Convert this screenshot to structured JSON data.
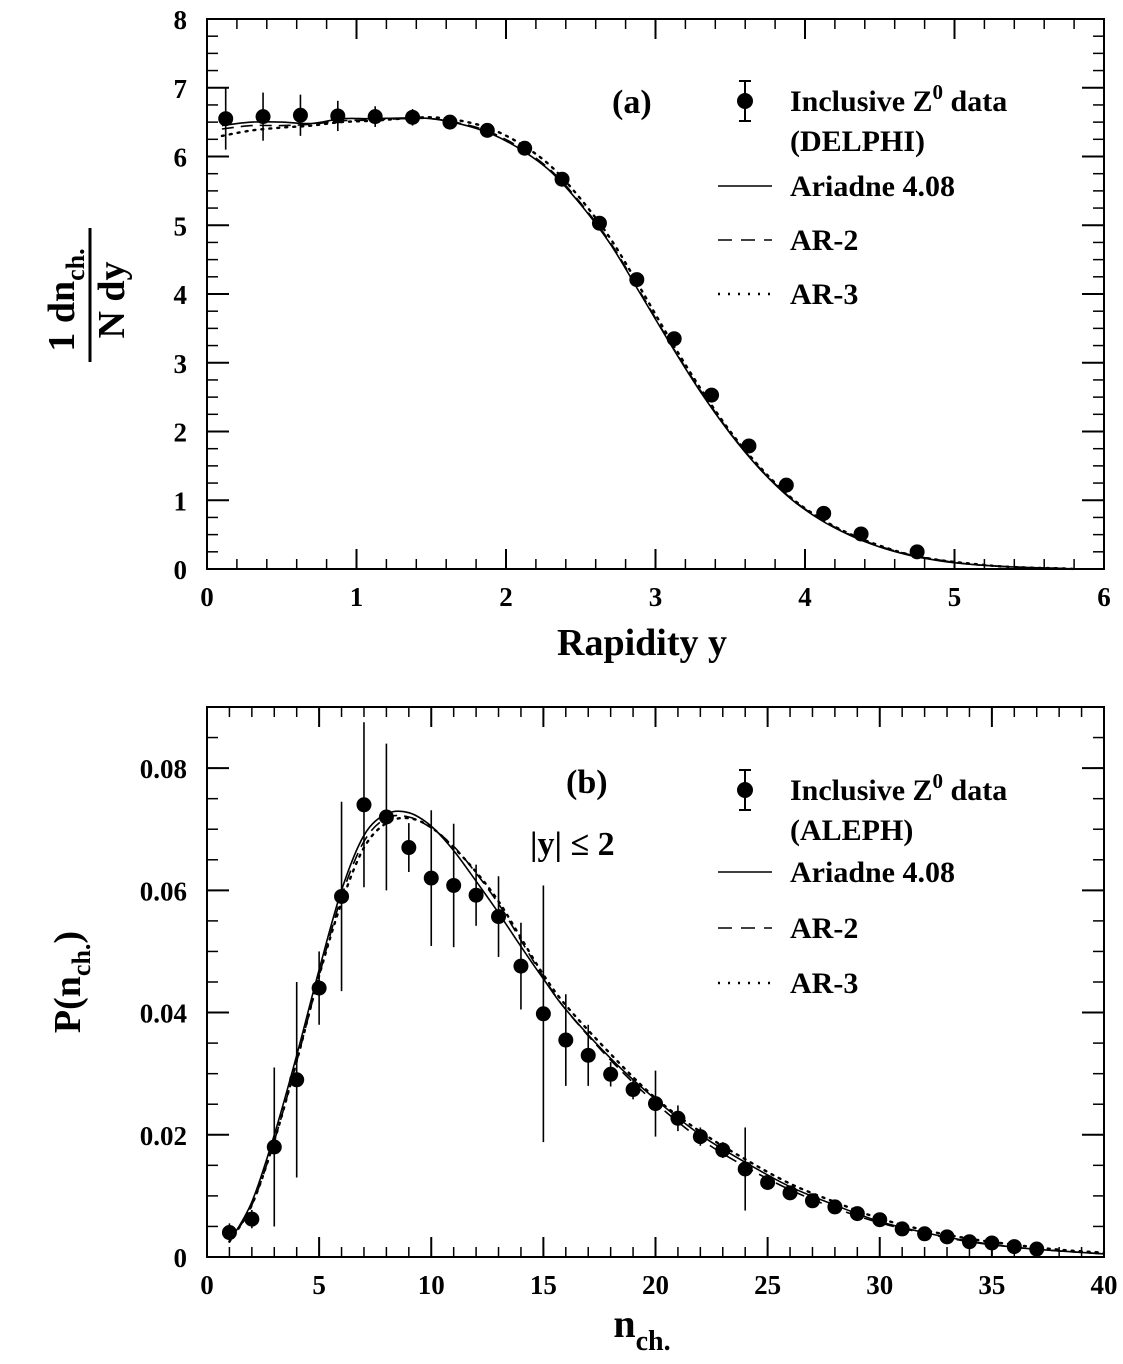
{
  "chart_data": [
    {
      "type": "scatter",
      "panel_label": "(a)",
      "xlabel": "Rapidity y",
      "ylabel": "1/N dn_ch./dy",
      "xlim": [
        0,
        6
      ],
      "ylim": [
        0,
        8
      ],
      "xticks": [
        "0",
        "1",
        "2",
        "3",
        "4",
        "5",
        "6"
      ],
      "yticks": [
        "0",
        "1",
        "2",
        "3",
        "4",
        "5",
        "6",
        "7",
        "8"
      ],
      "grid": false,
      "legend_position": "top-right",
      "legend": [
        {
          "marker": "point-errorbar",
          "label": "Inclusive Z^0 data",
          "label_line2": "(DELPHI)"
        },
        {
          "style": "solid",
          "label": "Ariadne 4.08"
        },
        {
          "style": "dashed",
          "label": "AR-2"
        },
        {
          "style": "dotted",
          "label": "AR-3"
        }
      ],
      "data": {
        "name": "Inclusive Z0 data (DELPHI)",
        "x": [
          0.125,
          0.375,
          0.625,
          0.875,
          1.125,
          1.375,
          1.625,
          1.875,
          2.125,
          2.375,
          2.625,
          2.875,
          3.125,
          3.375,
          3.625,
          3.875,
          4.125,
          4.375,
          4.75
        ],
        "y": [
          6.55,
          6.58,
          6.6,
          6.59,
          6.58,
          6.57,
          6.5,
          6.38,
          6.12,
          5.67,
          5.03,
          4.21,
          3.35,
          2.53,
          1.79,
          1.22,
          0.81,
          0.51,
          0.25
        ],
        "err": [
          0.45,
          0.35,
          0.3,
          0.22,
          0.15,
          0.12,
          0.06,
          0.05,
          0.05,
          0.05,
          0.05,
          0.05,
          0.05,
          0.05,
          0.05,
          0.05,
          0.04,
          0.04,
          0.04
        ]
      },
      "series": [
        {
          "name": "Ariadne 4.08",
          "style": "solid",
          "x": [
            0.1,
            0.3,
            0.5,
            0.7,
            0.9,
            1.1,
            1.3,
            1.5,
            1.7,
            1.9,
            2.1,
            2.3,
            2.5,
            2.7,
            2.9,
            3.1,
            3.3,
            3.5,
            3.7,
            3.9,
            4.1,
            4.3,
            4.5,
            4.7,
            4.9,
            5.1,
            5.3,
            5.5,
            5.7,
            5.8
          ],
          "y": [
            6.45,
            6.5,
            6.5,
            6.48,
            6.55,
            6.55,
            6.56,
            6.55,
            6.47,
            6.33,
            6.1,
            5.78,
            5.3,
            4.72,
            4.0,
            3.27,
            2.58,
            1.97,
            1.45,
            1.03,
            0.72,
            0.49,
            0.32,
            0.2,
            0.12,
            0.07,
            0.04,
            0.02,
            0.01,
            0.0
          ]
        },
        {
          "name": "AR-2",
          "style": "dashed",
          "x": [
            0.1,
            0.3,
            0.5,
            0.7,
            0.9,
            1.1,
            1.3,
            1.5,
            1.7,
            1.9,
            2.1,
            2.3,
            2.5,
            2.7,
            2.9,
            3.1,
            3.3,
            3.5,
            3.7,
            3.9,
            4.1,
            4.3,
            4.5,
            4.7,
            4.9,
            5.1,
            5.3,
            5.5,
            5.7,
            5.8
          ],
          "y": [
            6.4,
            6.45,
            6.45,
            6.47,
            6.52,
            6.53,
            6.55,
            6.55,
            6.48,
            6.35,
            6.12,
            5.8,
            5.32,
            4.74,
            4.02,
            3.28,
            2.6,
            1.98,
            1.46,
            1.04,
            0.73,
            0.5,
            0.33,
            0.21,
            0.13,
            0.07,
            0.04,
            0.02,
            0.01,
            0.0
          ]
        },
        {
          "name": "AR-3",
          "style": "dotted",
          "x": [
            0.1,
            0.3,
            0.5,
            0.7,
            0.9,
            1.1,
            1.3,
            1.5,
            1.7,
            1.9,
            2.1,
            2.3,
            2.5,
            2.7,
            2.9,
            3.1,
            3.3,
            3.5,
            3.7,
            3.9,
            4.1,
            4.3,
            4.5,
            4.7,
            4.9,
            5.1,
            5.3,
            5.5,
            5.7,
            5.8
          ],
          "y": [
            6.3,
            6.38,
            6.42,
            6.45,
            6.5,
            6.52,
            6.55,
            6.57,
            6.52,
            6.4,
            6.18,
            5.86,
            5.38,
            4.8,
            4.08,
            3.33,
            2.63,
            2.0,
            1.48,
            1.05,
            0.74,
            0.51,
            0.34,
            0.21,
            0.13,
            0.08,
            0.04,
            0.02,
            0.01,
            0.0
          ]
        }
      ]
    },
    {
      "type": "scatter",
      "panel_label": "(b)",
      "annotation": "|y| ≤ 2",
      "xlabel": "n_ch.",
      "ylabel": "P(n_ch.)",
      "xlim": [
        0,
        40
      ],
      "ylim": [
        0,
        0.09
      ],
      "xticks": [
        "0",
        "5",
        "10",
        "15",
        "20",
        "25",
        "30",
        "35",
        "40"
      ],
      "yticks": [
        "0",
        "0.02",
        "0.04",
        "0.06",
        "0.08"
      ],
      "grid": false,
      "legend_position": "top-right",
      "legend": [
        {
          "marker": "point-errorbar",
          "label": "Inclusive Z^0 data",
          "label_line2": "(ALEPH)"
        },
        {
          "style": "solid",
          "label": "Ariadne 4.08"
        },
        {
          "style": "dashed",
          "label": "AR-2"
        },
        {
          "style": "dotted",
          "label": "AR-3"
        }
      ],
      "data": {
        "name": "Inclusive Z0 data (ALEPH)",
        "x": [
          1,
          2,
          3,
          4,
          5,
          6,
          7,
          8,
          9,
          10,
          11,
          12,
          13,
          14,
          15,
          16,
          17,
          18,
          19,
          20,
          21,
          22,
          23,
          24,
          25,
          26,
          27,
          28,
          29,
          30,
          31,
          32,
          33,
          34,
          35,
          36,
          37
        ],
        "y": [
          0.004,
          0.0062,
          0.018,
          0.029,
          0.044,
          0.059,
          0.074,
          0.072,
          0.067,
          0.062,
          0.0608,
          0.0592,
          0.0557,
          0.0476,
          0.0398,
          0.0355,
          0.033,
          0.0299,
          0.0274,
          0.0251,
          0.0227,
          0.0197,
          0.0175,
          0.0144,
          0.0122,
          0.0105,
          0.0092,
          0.0082,
          0.0071,
          0.0061,
          0.0046,
          0.0038,
          0.0033,
          0.0025,
          0.0023,
          0.0017,
          0.0013
        ],
        "err": [
          0.0015,
          0.0015,
          0.013,
          0.016,
          0.006,
          0.0155,
          0.0135,
          0.012,
          0.004,
          0.0111,
          0.0101,
          0.005,
          0.0066,
          0.0071,
          0.021,
          0.0075,
          0.005,
          0.002,
          0.0016,
          0.0054,
          0.0021,
          0.0015,
          0.0013,
          0.0068,
          0.0012,
          0.0011,
          0.0011,
          0.0008,
          0.0007,
          0.0006,
          0.0005,
          0.0004,
          0.0004,
          0.0003,
          0.0003,
          0.0002,
          0.0002
        ]
      },
      "series": [
        {
          "name": "Ariadne 4.08",
          "style": "solid",
          "x": [
            1,
            2,
            3,
            4,
            5,
            6,
            7,
            8,
            9,
            10,
            11,
            12,
            13,
            14,
            15,
            16,
            18,
            20,
            22,
            24,
            26,
            28,
            30,
            32,
            34,
            36,
            38,
            40
          ],
          "y": [
            0.0025,
            0.009,
            0.02,
            0.033,
            0.047,
            0.06,
            0.069,
            0.0725,
            0.0727,
            0.0705,
            0.0665,
            0.0615,
            0.0563,
            0.0508,
            0.0455,
            0.0405,
            0.0325,
            0.0258,
            0.02,
            0.0155,
            0.0115,
            0.0085,
            0.0058,
            0.004,
            0.0026,
            0.0016,
            0.001,
            0.0005
          ]
        },
        {
          "name": "AR-2",
          "style": "dashed",
          "x": [
            1,
            2,
            3,
            4,
            5,
            6,
            7,
            8,
            9,
            10,
            11,
            12,
            13,
            14,
            15,
            16,
            18,
            20,
            22,
            24,
            26,
            28,
            30,
            32,
            34,
            36,
            38,
            40
          ],
          "y": [
            0.0025,
            0.0085,
            0.019,
            0.032,
            0.046,
            0.059,
            0.068,
            0.0718,
            0.072,
            0.0702,
            0.0672,
            0.0628,
            0.0578,
            0.0518,
            0.0458,
            0.0405,
            0.0322,
            0.0252,
            0.0193,
            0.0148,
            0.011,
            0.008,
            0.0056,
            0.0039,
            0.0025,
            0.0016,
            0.001,
            0.0005
          ]
        },
        {
          "name": "AR-3",
          "style": "dotted",
          "x": [
            1,
            2,
            3,
            4,
            5,
            6,
            7,
            8,
            9,
            10,
            11,
            12,
            13,
            14,
            15,
            16,
            18,
            20,
            22,
            24,
            26,
            28,
            30,
            32,
            34,
            36,
            38,
            40
          ],
          "y": [
            0.0025,
            0.0085,
            0.019,
            0.032,
            0.046,
            0.058,
            0.067,
            0.071,
            0.0718,
            0.0703,
            0.067,
            0.063,
            0.0582,
            0.0522,
            0.0462,
            0.0412,
            0.0332,
            0.026,
            0.0205,
            0.016,
            0.012,
            0.009,
            0.0063,
            0.0044,
            0.003,
            0.002,
            0.0012,
            0.0007
          ]
        }
      ]
    }
  ]
}
